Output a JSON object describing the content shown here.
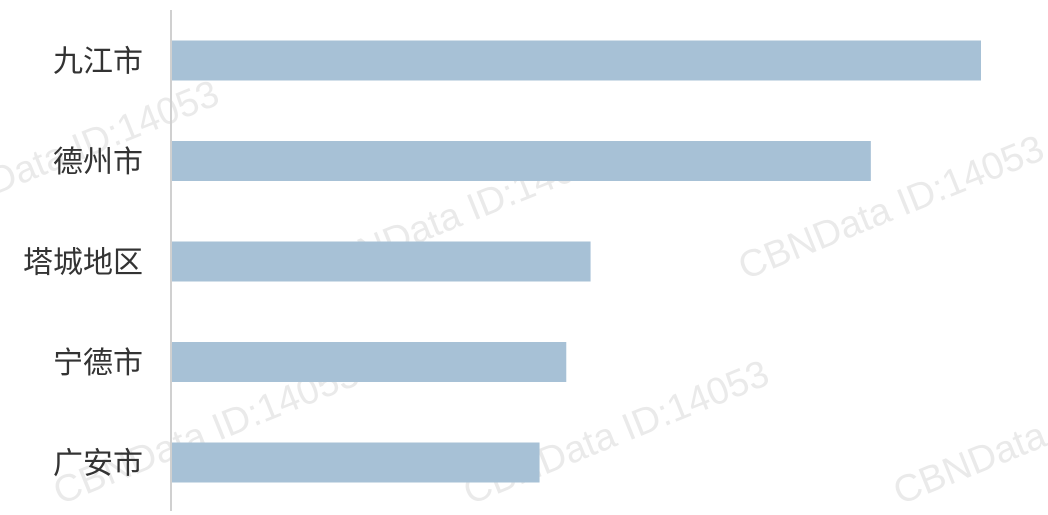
{
  "chart_data": {
    "type": "bar",
    "orientation": "horizontal",
    "categories": [
      "九江市",
      "德州市",
      "塔城地区",
      "宁德市",
      "广安市"
    ],
    "values": [
      1.0,
      0.864,
      0.518,
      0.488,
      0.455
    ],
    "title": "",
    "xlabel": "",
    "ylabel": "",
    "xlim": [
      0,
      1.0
    ],
    "grid": false,
    "legend": "none",
    "colors": {
      "bar": "#a7c1d6",
      "axis": "#d0d0d0",
      "label": "#333333",
      "watermark": "#d9d9d9"
    }
  },
  "watermark": {
    "text": "CBNData ID:14053"
  }
}
